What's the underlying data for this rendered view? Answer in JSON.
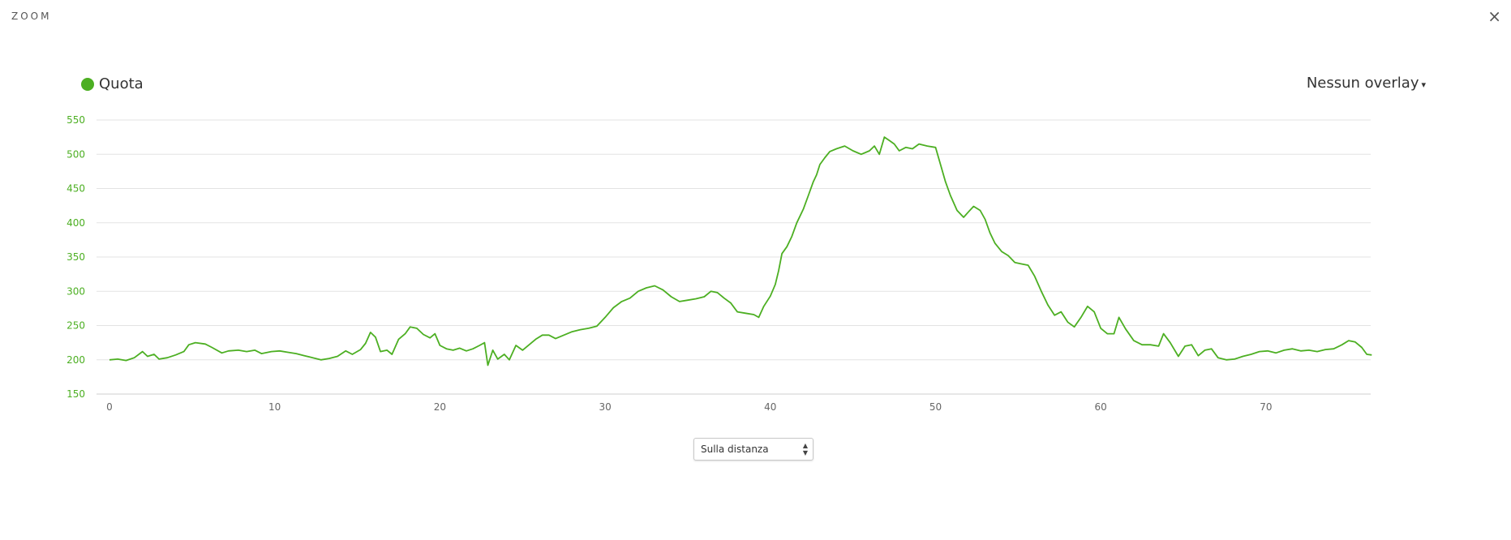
{
  "modal": {
    "title": "ZOOM",
    "close_label": "×"
  },
  "legend": {
    "label": "Quota",
    "color": "#4caf22"
  },
  "overlay": {
    "label": "Nessun overlay",
    "caret": "▾"
  },
  "axis_select": {
    "value": "Sulla distanza",
    "arrows_up": "▲",
    "arrows_down": "▼"
  },
  "chart_data": {
    "type": "line",
    "xlabel": "",
    "ylabel": "",
    "xlim": [
      0,
      76.5
    ],
    "ylim": [
      150,
      550
    ],
    "x_ticks": [
      0,
      10,
      20,
      30,
      40,
      50,
      60,
      70
    ],
    "y_ticks": [
      150,
      200,
      250,
      300,
      350,
      400,
      450,
      500,
      550
    ],
    "grid": true,
    "line_color": "#4caf22",
    "tick_color": "#4caf22",
    "series": [
      {
        "name": "Quota",
        "points": [
          [
            0,
            200
          ],
          [
            0.5,
            201
          ],
          [
            1,
            199
          ],
          [
            1.5,
            203
          ],
          [
            2,
            212
          ],
          [
            2.3,
            205
          ],
          [
            2.7,
            208
          ],
          [
            3,
            201
          ],
          [
            3.5,
            203
          ],
          [
            4,
            207
          ],
          [
            4.5,
            212
          ],
          [
            4.8,
            222
          ],
          [
            5.2,
            225
          ],
          [
            5.8,
            223
          ],
          [
            6.2,
            218
          ],
          [
            6.8,
            210
          ],
          [
            7.2,
            213
          ],
          [
            7.8,
            214
          ],
          [
            8.3,
            212
          ],
          [
            8.8,
            214
          ],
          [
            9.2,
            209
          ],
          [
            9.8,
            212
          ],
          [
            10.3,
            213
          ],
          [
            10.8,
            211
          ],
          [
            11.3,
            209
          ],
          [
            11.8,
            206
          ],
          [
            12.3,
            203
          ],
          [
            12.8,
            200
          ],
          [
            13.3,
            202
          ],
          [
            13.8,
            205
          ],
          [
            14.3,
            213
          ],
          [
            14.7,
            208
          ],
          [
            15.2,
            215
          ],
          [
            15.5,
            224
          ],
          [
            15.8,
            240
          ],
          [
            16.1,
            233
          ],
          [
            16.4,
            212
          ],
          [
            16.8,
            214
          ],
          [
            17.1,
            208
          ],
          [
            17.5,
            230
          ],
          [
            17.9,
            238
          ],
          [
            18.2,
            248
          ],
          [
            18.6,
            246
          ],
          [
            19,
            237
          ],
          [
            19.4,
            232
          ],
          [
            19.7,
            238
          ],
          [
            20,
            221
          ],
          [
            20.4,
            216
          ],
          [
            20.8,
            214
          ],
          [
            21.2,
            217
          ],
          [
            21.6,
            213
          ],
          [
            22,
            216
          ],
          [
            22.4,
            221
          ],
          [
            22.7,
            225
          ],
          [
            22.9,
            192
          ],
          [
            23.2,
            214
          ],
          [
            23.5,
            201
          ],
          [
            23.9,
            208
          ],
          [
            24.2,
            200
          ],
          [
            24.6,
            221
          ],
          [
            25,
            214
          ],
          [
            25.4,
            222
          ],
          [
            25.8,
            230
          ],
          [
            26.2,
            236
          ],
          [
            26.6,
            236
          ],
          [
            27,
            231
          ],
          [
            27.5,
            236
          ],
          [
            28,
            241
          ],
          [
            28.5,
            244
          ],
          [
            29,
            246
          ],
          [
            29.5,
            249
          ],
          [
            30,
            262
          ],
          [
            30.5,
            276
          ],
          [
            31,
            285
          ],
          [
            31.5,
            290
          ],
          [
            32,
            300
          ],
          [
            32.5,
            305
          ],
          [
            33,
            308
          ],
          [
            33.5,
            302
          ],
          [
            34,
            292
          ],
          [
            34.5,
            285
          ],
          [
            35,
            287
          ],
          [
            35.5,
            289
          ],
          [
            36,
            292
          ],
          [
            36.4,
            300
          ],
          [
            36.8,
            298
          ],
          [
            37.2,
            290
          ],
          [
            37.6,
            283
          ],
          [
            38,
            270
          ],
          [
            38.5,
            268
          ],
          [
            39,
            266
          ],
          [
            39.3,
            262
          ],
          [
            39.6,
            278
          ],
          [
            40,
            293
          ],
          [
            40.3,
            310
          ],
          [
            40.5,
            330
          ],
          [
            40.7,
            355
          ],
          [
            41,
            365
          ],
          [
            41.3,
            380
          ],
          [
            41.6,
            400
          ],
          [
            42,
            420
          ],
          [
            42.3,
            440
          ],
          [
            42.6,
            460
          ],
          [
            42.8,
            470
          ],
          [
            43,
            485
          ],
          [
            43.3,
            495
          ],
          [
            43.6,
            504
          ],
          [
            44,
            508
          ],
          [
            44.5,
            512
          ],
          [
            45,
            505
          ],
          [
            45.5,
            500
          ],
          [
            46,
            505
          ],
          [
            46.3,
            512
          ],
          [
            46.6,
            500
          ],
          [
            46.9,
            525
          ],
          [
            47.2,
            520
          ],
          [
            47.5,
            515
          ],
          [
            47.8,
            505
          ],
          [
            48.2,
            510
          ],
          [
            48.6,
            508
          ],
          [
            49,
            515
          ],
          [
            49.5,
            512
          ],
          [
            50,
            510
          ],
          [
            50.3,
            485
          ],
          [
            50.6,
            460
          ],
          [
            50.9,
            440
          ],
          [
            51.3,
            418
          ],
          [
            51.7,
            408
          ],
          [
            52,
            416
          ],
          [
            52.3,
            424
          ],
          [
            52.7,
            418
          ],
          [
            53,
            405
          ],
          [
            53.3,
            385
          ],
          [
            53.6,
            370
          ],
          [
            54,
            358
          ],
          [
            54.4,
            352
          ],
          [
            54.8,
            342
          ],
          [
            55.2,
            340
          ],
          [
            55.6,
            338
          ],
          [
            56,
            322
          ],
          [
            56.4,
            300
          ],
          [
            56.8,
            280
          ],
          [
            57.2,
            265
          ],
          [
            57.6,
            270
          ],
          [
            58,
            255
          ],
          [
            58.4,
            248
          ],
          [
            58.8,
            262
          ],
          [
            59.2,
            278
          ],
          [
            59.6,
            270
          ],
          [
            60,
            246
          ],
          [
            60.4,
            238
          ],
          [
            60.8,
            238
          ],
          [
            61.1,
            262
          ],
          [
            61.5,
            245
          ],
          [
            62,
            228
          ],
          [
            62.5,
            222
          ],
          [
            63,
            222
          ],
          [
            63.5,
            220
          ],
          [
            63.8,
            238
          ],
          [
            64.2,
            225
          ],
          [
            64.7,
            205
          ],
          [
            65.1,
            220
          ],
          [
            65.5,
            222
          ],
          [
            65.9,
            206
          ],
          [
            66.3,
            214
          ],
          [
            66.7,
            216
          ],
          [
            67.1,
            203
          ],
          [
            67.6,
            200
          ],
          [
            68.1,
            201
          ],
          [
            68.6,
            205
          ],
          [
            69.1,
            208
          ],
          [
            69.6,
            212
          ],
          [
            70.1,
            213
          ],
          [
            70.6,
            210
          ],
          [
            71.1,
            214
          ],
          [
            71.6,
            216
          ],
          [
            72.1,
            213
          ],
          [
            72.6,
            214
          ],
          [
            73.1,
            212
          ],
          [
            73.6,
            215
          ],
          [
            74.1,
            216
          ],
          [
            74.6,
            222
          ],
          [
            75,
            228
          ],
          [
            75.4,
            226
          ],
          [
            75.8,
            218
          ],
          [
            76.1,
            208
          ],
          [
            76.4,
            207
          ]
        ]
      }
    ]
  }
}
